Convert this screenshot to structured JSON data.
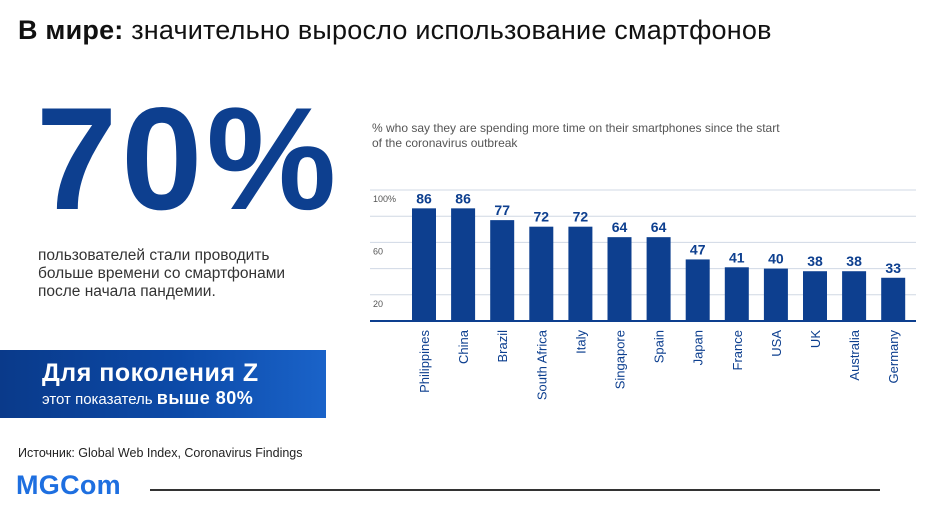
{
  "title": {
    "bold": "В мире:",
    "rest": "значительно выросло использование смартфонов"
  },
  "stat": {
    "value": "70%",
    "line1": "пользователей стали проводить",
    "line2": "больше времени со смартфонами",
    "line3": "после начала пандемии."
  },
  "genz": {
    "title": "Для поколения Z",
    "sub_text": "этот показатель",
    "sub_bold": "выше 80%"
  },
  "source": "Источник: Global Web Index, Coronavirus Findings",
  "logo": "MGCom",
  "colors": {
    "bar": "#0d3f8f",
    "value_label": "#0d3f8f",
    "grid": "#d0d8e4",
    "axis": "#0d3f8f",
    "brand": "#1e6fe0"
  },
  "chart_data": {
    "type": "bar",
    "title": "% who say they are spending more time on their smartphones since the start of the coronavirus outbreak",
    "categories": [
      "Philippines",
      "China",
      "Brazil",
      "South Africa",
      "Italy",
      "Singapore",
      "Spain",
      "Japan",
      "France",
      "USA",
      "UK",
      "Australia",
      "Germany"
    ],
    "values": [
      86,
      86,
      77,
      72,
      72,
      64,
      64,
      47,
      41,
      40,
      38,
      38,
      33
    ],
    "ytick_labels": [
      "100%",
      "60",
      "20"
    ],
    "ytick_values": [
      100,
      60,
      20
    ],
    "ylim": [
      0,
      100
    ],
    "xlabel": "",
    "ylabel": "",
    "grid": true
  }
}
